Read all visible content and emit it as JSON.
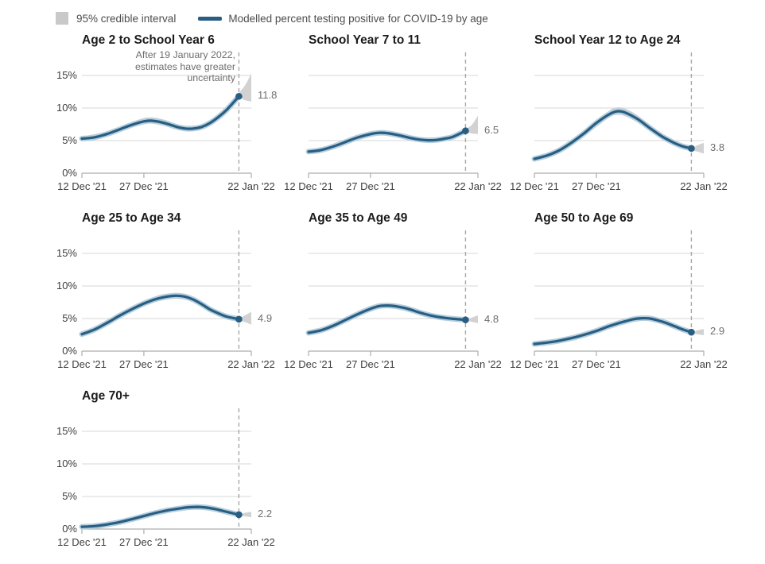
{
  "legend": {
    "band_label": "95% credible interval",
    "line_label": "Modelled percent testing positive for COVID-19 by age"
  },
  "colors": {
    "line": "#275e82",
    "line_halo": "#b7cedd",
    "band": "#d2d2d2",
    "grid": "#d7d7d7",
    "axis": "#adadad",
    "dashed": "#a7a7a7",
    "legend_square": "#c9c9c9"
  },
  "annotation": {
    "lines": [
      "After 19 January 2022,",
      "estimates have greater",
      "uncertainty"
    ]
  },
  "axes": {
    "x_ticks": [
      {
        "label": "12 Dec '21",
        "day": 0
      },
      {
        "label": "27 Dec '21",
        "day": 15
      },
      {
        "label": "22 Jan '22",
        "day": 41
      }
    ],
    "y_ticks": [
      {
        "label": "15%",
        "value": 15
      },
      {
        "label": "10%",
        "value": 10
      },
      {
        "label": "5%",
        "value": 5
      },
      {
        "label": "0%",
        "value": 0
      }
    ],
    "x_range_days": [
      0,
      41
    ],
    "y_max_pct": 18.5,
    "dashed_line_day": 38,
    "dashed_line_date": "19 January 2022",
    "grid": true
  },
  "chart_data": [
    {
      "type": "line",
      "title": "Age 2 to School Year 6",
      "end_value": "11.8",
      "show_y_labels": true,
      "has_annotation": true,
      "points": [
        [
          0,
          5.3
        ],
        [
          3,
          5.5
        ],
        [
          6,
          6.0
        ],
        [
          9,
          6.7
        ],
        [
          12,
          7.4
        ],
        [
          15,
          7.95
        ],
        [
          17,
          8.05
        ],
        [
          20,
          7.7
        ],
        [
          23,
          7.1
        ],
        [
          25,
          6.85
        ],
        [
          27,
          6.85
        ],
        [
          29,
          7.1
        ],
        [
          31,
          7.7
        ],
        [
          33,
          8.6
        ],
        [
          35,
          9.7
        ],
        [
          38,
          11.8
        ]
      ],
      "band": [
        [
          0,
          4.95,
          5.65
        ],
        [
          6,
          5.6,
          6.4
        ],
        [
          12,
          7.0,
          7.85
        ],
        [
          15,
          7.5,
          8.45
        ],
        [
          17,
          7.6,
          8.55
        ],
        [
          20,
          7.25,
          8.2
        ],
        [
          23,
          6.7,
          7.55
        ],
        [
          25,
          6.45,
          7.3
        ],
        [
          27,
          6.45,
          7.3
        ],
        [
          29,
          6.7,
          7.5
        ],
        [
          31,
          7.3,
          8.1
        ],
        [
          33,
          8.2,
          9.0
        ],
        [
          35,
          9.3,
          10.1
        ],
        [
          38,
          11.4,
          12.3
        ],
        [
          39.5,
          11.2,
          13.5
        ],
        [
          41,
          11.0,
          15.3
        ]
      ]
    },
    {
      "type": "line",
      "title": "School Year 7 to 11",
      "end_value": "6.5",
      "show_y_labels": false,
      "has_annotation": false,
      "points": [
        [
          0,
          3.3
        ],
        [
          3,
          3.55
        ],
        [
          6,
          4.1
        ],
        [
          9,
          4.8
        ],
        [
          12,
          5.5
        ],
        [
          15,
          6.0
        ],
        [
          17,
          6.2
        ],
        [
          19,
          6.15
        ],
        [
          22,
          5.8
        ],
        [
          25,
          5.35
        ],
        [
          27,
          5.15
        ],
        [
          29,
          5.05
        ],
        [
          31,
          5.1
        ],
        [
          33,
          5.3
        ],
        [
          35,
          5.6
        ],
        [
          38,
          6.5
        ]
      ],
      "band": [
        [
          0,
          3.0,
          3.6
        ],
        [
          6,
          3.8,
          4.4
        ],
        [
          12,
          5.2,
          5.8
        ],
        [
          17,
          5.85,
          6.55
        ],
        [
          19,
          5.8,
          6.5
        ],
        [
          22,
          5.45,
          6.15
        ],
        [
          25,
          5.0,
          5.7
        ],
        [
          29,
          4.7,
          5.4
        ],
        [
          33,
          4.95,
          5.65
        ],
        [
          35,
          5.3,
          5.95
        ],
        [
          38,
          6.2,
          6.8
        ],
        [
          39.5,
          6.1,
          7.4
        ],
        [
          41,
          6.0,
          8.8
        ]
      ]
    },
    {
      "type": "line",
      "title": "School Year 12 to Age 24",
      "end_value": "3.8",
      "show_y_labels": false,
      "has_annotation": false,
      "points": [
        [
          0,
          2.2
        ],
        [
          3,
          2.7
        ],
        [
          6,
          3.5
        ],
        [
          9,
          4.7
        ],
        [
          12,
          6.1
        ],
        [
          15,
          7.7
        ],
        [
          18,
          9.0
        ],
        [
          20,
          9.5
        ],
        [
          22,
          9.3
        ],
        [
          25,
          8.3
        ],
        [
          28,
          6.9
        ],
        [
          31,
          5.6
        ],
        [
          34,
          4.6
        ],
        [
          36,
          4.1
        ],
        [
          38,
          3.8
        ]
      ],
      "band": [
        [
          0,
          1.95,
          2.45
        ],
        [
          6,
          3.2,
          3.8
        ],
        [
          12,
          5.7,
          6.5
        ],
        [
          18,
          8.5,
          9.55
        ],
        [
          20,
          8.95,
          10.1
        ],
        [
          22,
          8.75,
          9.9
        ],
        [
          25,
          7.75,
          8.85
        ],
        [
          28,
          6.45,
          7.35
        ],
        [
          31,
          5.25,
          5.95
        ],
        [
          34,
          4.3,
          4.9
        ],
        [
          38,
          3.55,
          4.05
        ],
        [
          39.5,
          3.3,
          4.3
        ],
        [
          41,
          3.0,
          4.65
        ]
      ]
    },
    {
      "type": "line",
      "title": "Age 25 to Age 34",
      "end_value": "4.9",
      "show_y_labels": true,
      "has_annotation": false,
      "points": [
        [
          0,
          2.6
        ],
        [
          3,
          3.3
        ],
        [
          6,
          4.3
        ],
        [
          9,
          5.4
        ],
        [
          12,
          6.4
        ],
        [
          15,
          7.3
        ],
        [
          18,
          8.0
        ],
        [
          21,
          8.4
        ],
        [
          23,
          8.5
        ],
        [
          25,
          8.35
        ],
        [
          27,
          7.9
        ],
        [
          29,
          7.2
        ],
        [
          31,
          6.4
        ],
        [
          33,
          5.8
        ],
        [
          35,
          5.3
        ],
        [
          38,
          4.9
        ]
      ],
      "band": [
        [
          0,
          2.3,
          2.9
        ],
        [
          6,
          4.0,
          4.6
        ],
        [
          12,
          6.05,
          6.75
        ],
        [
          18,
          7.6,
          8.45
        ],
        [
          21,
          7.95,
          8.85
        ],
        [
          23,
          8.05,
          8.95
        ],
        [
          25,
          7.9,
          8.8
        ],
        [
          27,
          7.5,
          8.35
        ],
        [
          29,
          6.85,
          7.6
        ],
        [
          31,
          6.1,
          6.75
        ],
        [
          33,
          5.5,
          6.1
        ],
        [
          35,
          5.05,
          5.6
        ],
        [
          38,
          4.7,
          5.15
        ],
        [
          39.5,
          4.45,
          5.5
        ],
        [
          41,
          4.05,
          6.05
        ]
      ]
    },
    {
      "type": "line",
      "title": "Age 35 to Age 49",
      "end_value": "4.8",
      "show_y_labels": false,
      "has_annotation": false,
      "points": [
        [
          0,
          2.8
        ],
        [
          3,
          3.2
        ],
        [
          6,
          3.9
        ],
        [
          9,
          4.8
        ],
        [
          12,
          5.7
        ],
        [
          15,
          6.5
        ],
        [
          17,
          6.9
        ],
        [
          19,
          7.0
        ],
        [
          21,
          6.9
        ],
        [
          24,
          6.5
        ],
        [
          27,
          5.9
        ],
        [
          30,
          5.4
        ],
        [
          33,
          5.1
        ],
        [
          35,
          4.95
        ],
        [
          38,
          4.8
        ]
      ],
      "band": [
        [
          0,
          2.65,
          2.95
        ],
        [
          9,
          4.6,
          5.0
        ],
        [
          17,
          6.7,
          7.1
        ],
        [
          19,
          6.8,
          7.2
        ],
        [
          24,
          6.3,
          6.7
        ],
        [
          30,
          5.25,
          5.55
        ],
        [
          38,
          4.65,
          4.95
        ],
        [
          39.5,
          4.5,
          5.15
        ],
        [
          41,
          4.3,
          5.5
        ]
      ]
    },
    {
      "type": "line",
      "title": "Age 50 to Age 69",
      "end_value": "2.9",
      "show_y_labels": false,
      "has_annotation": false,
      "points": [
        [
          0,
          1.1
        ],
        [
          3,
          1.3
        ],
        [
          6,
          1.6
        ],
        [
          9,
          2.0
        ],
        [
          12,
          2.5
        ],
        [
          15,
          3.1
        ],
        [
          18,
          3.8
        ],
        [
          21,
          4.4
        ],
        [
          24,
          4.9
        ],
        [
          26,
          5.05
        ],
        [
          28,
          5.0
        ],
        [
          30,
          4.7
        ],
        [
          32,
          4.3
        ],
        [
          34,
          3.8
        ],
        [
          36,
          3.3
        ],
        [
          38,
          2.9
        ]
      ],
      "band": [
        [
          0,
          1.0,
          1.2
        ],
        [
          12,
          2.38,
          2.62
        ],
        [
          24,
          4.78,
          5.02
        ],
        [
          26,
          4.93,
          5.17
        ],
        [
          30,
          4.58,
          4.82
        ],
        [
          34,
          3.68,
          3.92
        ],
        [
          38,
          2.75,
          3.05
        ],
        [
          39.5,
          2.6,
          3.2
        ],
        [
          41,
          2.45,
          3.4
        ]
      ]
    },
    {
      "type": "line",
      "title": "Age 70+",
      "end_value": "2.2",
      "show_y_labels": true,
      "has_annotation": false,
      "points": [
        [
          0,
          0.35
        ],
        [
          3,
          0.45
        ],
        [
          6,
          0.7
        ],
        [
          9,
          1.05
        ],
        [
          12,
          1.5
        ],
        [
          15,
          2.0
        ],
        [
          18,
          2.5
        ],
        [
          21,
          2.9
        ],
        [
          24,
          3.2
        ],
        [
          26,
          3.35
        ],
        [
          28,
          3.4
        ],
        [
          30,
          3.3
        ],
        [
          32,
          3.1
        ],
        [
          34,
          2.8
        ],
        [
          36,
          2.5
        ],
        [
          38,
          2.2
        ]
      ],
      "band": [
        [
          0,
          0.27,
          0.43
        ],
        [
          12,
          1.4,
          1.6
        ],
        [
          26,
          3.25,
          3.45
        ],
        [
          30,
          3.2,
          3.4
        ],
        [
          34,
          2.7,
          2.9
        ],
        [
          38,
          2.08,
          2.32
        ],
        [
          39.5,
          1.95,
          2.5
        ],
        [
          41,
          1.8,
          2.65
        ]
      ]
    }
  ]
}
